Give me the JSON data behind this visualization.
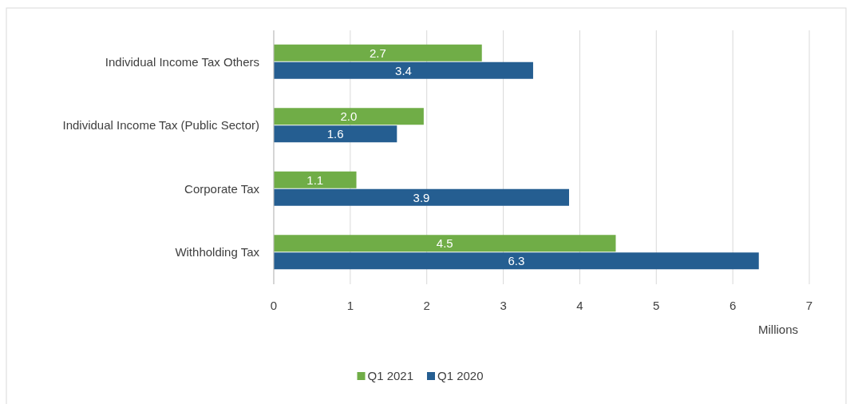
{
  "chart_data": {
    "type": "bar",
    "orientation": "horizontal",
    "xlabel": "Millions",
    "categories": [
      "Individual Income Tax Others",
      "Individual Income Tax (Public Sector)",
      "Corporate Tax",
      "Withholding Tax"
    ],
    "series": [
      {
        "name": "Q1 2021",
        "color": "#70ad47",
        "values": [
          2.72,
          1.96,
          1.08,
          4.47
        ],
        "value_labels": [
          "2.7",
          "2.0",
          "1.1",
          "4.5"
        ]
      },
      {
        "name": "Q1 2020",
        "color": "#255e91",
        "values": [
          3.39,
          1.61,
          3.86,
          6.34
        ],
        "value_labels": [
          "3.4",
          "1.6",
          "3.9",
          "6.3"
        ]
      }
    ],
    "xlim": [
      0,
      7
    ],
    "xticks": [
      0,
      1,
      2,
      3,
      4,
      5,
      6,
      7
    ],
    "grid": "x",
    "legend": "bottom"
  }
}
